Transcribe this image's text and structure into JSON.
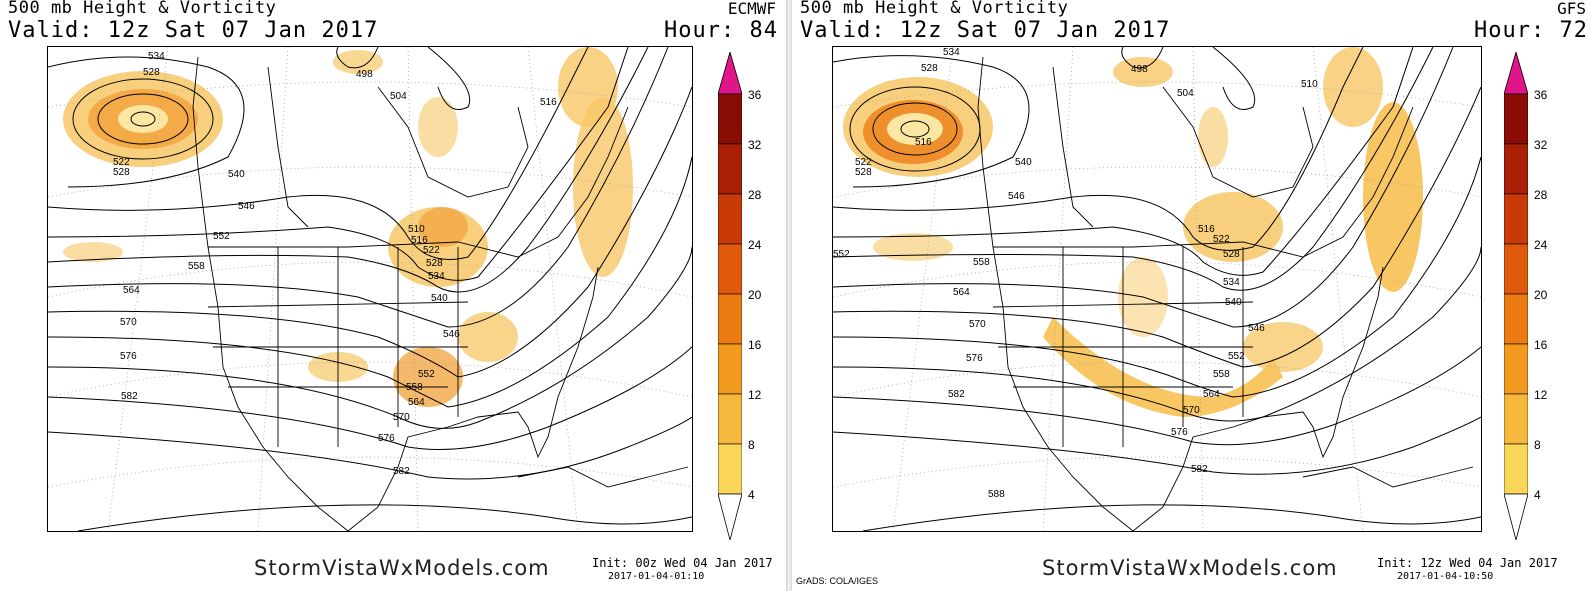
{
  "panels": [
    {
      "id": "left",
      "title": "500 mb Height & Vorticity",
      "valid": "Valid: 12z Sat 07 Jan 2017",
      "model": "ECMWF",
      "hour": "Hour: 84",
      "brand": "StormVistaWxModels.com",
      "init": "Init: 00z Wed 04 Jan 2017",
      "timestamp": "2017-01-04-01:10",
      "credit": "",
      "contour_labels": [
        "534",
        "528",
        "498",
        "504",
        "516",
        "522",
        "528",
        "540",
        "546",
        "552",
        "558",
        "564",
        "570",
        "576",
        "582",
        "510",
        "516",
        "522",
        "528",
        "534",
        "540",
        "546",
        "552",
        "558",
        "564",
        "570",
        "576",
        "582"
      ]
    },
    {
      "id": "right",
      "title": "500 mb Height & Vorticity",
      "valid": "Valid: 12z Sat 07 Jan 2017",
      "model": "GFS",
      "hour": "Hour: 72",
      "brand": "StormVistaWxModels.com",
      "init": "Init: 12z Wed 04 Jan 2017",
      "timestamp": "2017-01-04-10:50",
      "credit": "GrADS: COLA/IGES",
      "contour_labels": [
        "534",
        "528",
        "516",
        "522",
        "528",
        "498",
        "504",
        "510",
        "540",
        "546",
        "552",
        "558",
        "564",
        "570",
        "576",
        "582",
        "588",
        "516",
        "522",
        "528",
        "534",
        "540",
        "546",
        "552",
        "558",
        "564",
        "570",
        "576",
        "582"
      ]
    }
  ],
  "colorbar": {
    "labels": [
      "36",
      "32",
      "28",
      "24",
      "20",
      "16",
      "12",
      "8",
      "4"
    ],
    "colors": [
      "#fbe98a",
      "#f9d55a",
      "#f6b83c",
      "#f29a1e",
      "#ec7a12",
      "#e05a0c",
      "#c83a08",
      "#a81f06",
      "#8a0d05",
      "#e0158a"
    ]
  }
}
